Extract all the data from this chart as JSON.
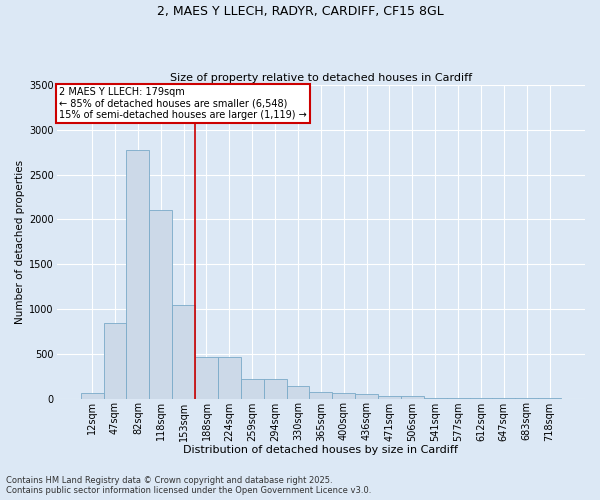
{
  "title1": "2, MAES Y LLECH, RADYR, CARDIFF, CF15 8GL",
  "title2": "Size of property relative to detached houses in Cardiff",
  "xlabel": "Distribution of detached houses by size in Cardiff",
  "ylabel": "Number of detached properties",
  "categories": [
    "12sqm",
    "47sqm",
    "82sqm",
    "118sqm",
    "153sqm",
    "188sqm",
    "224sqm",
    "259sqm",
    "294sqm",
    "330sqm",
    "365sqm",
    "400sqm",
    "436sqm",
    "471sqm",
    "506sqm",
    "541sqm",
    "577sqm",
    "612sqm",
    "647sqm",
    "683sqm",
    "718sqm"
  ],
  "values": [
    60,
    840,
    2780,
    2110,
    1040,
    460,
    460,
    215,
    215,
    140,
    75,
    60,
    50,
    30,
    25,
    5,
    5,
    3,
    3,
    2,
    1
  ],
  "bar_color": "#ccd9e8",
  "bar_edge_color": "#7aaac8",
  "vline_color": "#cc0000",
  "vline_pos": 4.5,
  "annotation_text": "2 MAES Y LLECH: 179sqm\n← 85% of detached houses are smaller (6,548)\n15% of semi-detached houses are larger (1,119) →",
  "annotation_box_edgecolor": "#cc0000",
  "ylim": [
    0,
    3500
  ],
  "yticks": [
    0,
    500,
    1000,
    1500,
    2000,
    2500,
    3000,
    3500
  ],
  "footer1": "Contains HM Land Registry data © Crown copyright and database right 2025.",
  "footer2": "Contains public sector information licensed under the Open Government Licence v3.0.",
  "bg_color": "#dce8f5",
  "plot_bg_color": "#dce8f5",
  "grid_color": "#ffffff",
  "title1_fontsize": 9,
  "title2_fontsize": 8,
  "xlabel_fontsize": 8,
  "ylabel_fontsize": 7.5,
  "tick_fontsize": 7,
  "annotation_fontsize": 7,
  "footer_fontsize": 6
}
